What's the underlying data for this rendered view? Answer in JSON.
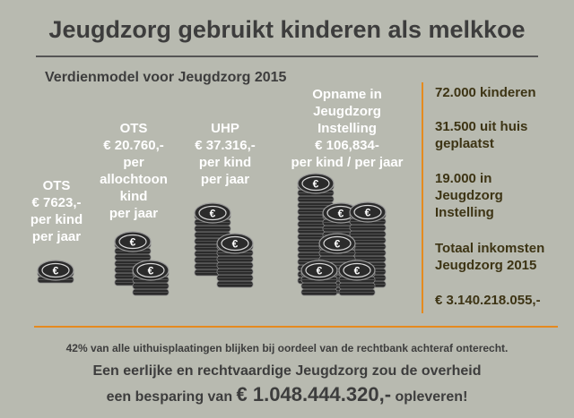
{
  "title": "Jeugdzorg gebruikt kinderen als melkkoe",
  "subtitle": "Verdienmodel voor Jeugdzorg 2015",
  "columns": [
    {
      "lines": [
        "OTS",
        "€ 7623,-",
        "per kind",
        "per jaar"
      ]
    },
    {
      "lines": [
        "OTS",
        "€ 20.760,-",
        "per",
        "allochtoon",
        "kind",
        "per jaar"
      ]
    },
    {
      "lines": [
        "UHP",
        "€ 37.316,-",
        "per kind",
        "per jaar"
      ]
    },
    {
      "lines": [
        "Opname in",
        "Jeugdzorg",
        "Instelling",
        "€ 106,834-",
        "per kind / per jaar"
      ]
    }
  ],
  "coin_symbol": "€",
  "stats": [
    {
      "lines": [
        "72.000 kinderen"
      ]
    },
    {
      "lines": [
        "31.500 uit huis",
        "geplaatst"
      ]
    },
    {
      "lines": [
        "19.000 in",
        "Jeugdzorg",
        "Instelling"
      ]
    },
    {
      "lines": [
        "Totaal inkomsten",
        "Jeugdzorg 2015"
      ]
    },
    {
      "lines": [
        "€ 3.140.218.055,-"
      ]
    }
  ],
  "note": "42% van alle uithuisplaatingen blijken bij oordeel van de rechtbank achteraf onterecht.",
  "footer": {
    "line1": "Een eerlijke en rechtvaardige Jeugdzorg zou de overheid",
    "line2_prefix": "een besparing van ",
    "line2_amount": "€ 1.048.444.320,-",
    "line2_suffix": " opleveren!"
  },
  "colors": {
    "background": "#b8bab0",
    "accent": "#e58a1f",
    "coin": "#2b2b2b",
    "label": "#ffffff",
    "stat_text": "#3d3414"
  },
  "icons": [
    "euro-coin-stack-icon"
  ]
}
